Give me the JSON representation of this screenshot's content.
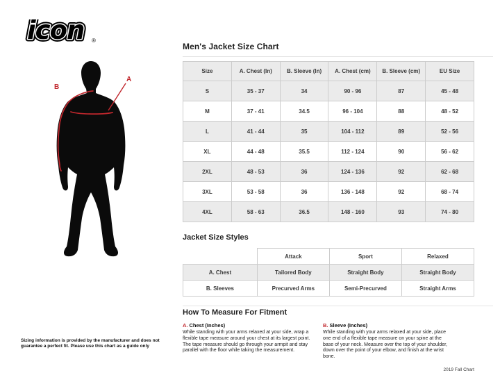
{
  "colors": {
    "accent_red": "#c1272d",
    "table_stripe": "#ebebeb",
    "table_border": "#cccccc"
  },
  "logo": {
    "text": "icon",
    "registered": "®"
  },
  "figure": {
    "label_a": "A",
    "label_b": "B"
  },
  "size_chart": {
    "title": "Men's Jacket Size Chart",
    "columns": [
      "Size",
      "A. Chest (In)",
      "B. Sleeve (In)",
      "A. Chest (cm)",
      "B. Sleeve (cm)",
      "EU Size"
    ],
    "rows": [
      [
        "S",
        "35 - 37",
        "34",
        "90 - 96",
        "87",
        "45 - 48"
      ],
      [
        "M",
        "37 - 41",
        "34.5",
        "96 - 104",
        "88",
        "48 - 52"
      ],
      [
        "L",
        "41 - 44",
        "35",
        "104 - 112",
        "89",
        "52 - 56"
      ],
      [
        "XL",
        "44 - 48",
        "35.5",
        "112 - 124",
        "90",
        "56 - 62"
      ],
      [
        "2XL",
        "48 - 53",
        "36",
        "124 - 136",
        "92",
        "62 - 68"
      ],
      [
        "3XL",
        "53 - 58",
        "36",
        "136 - 148",
        "92",
        "68 - 74"
      ],
      [
        "4XL",
        "58 - 63",
        "36.5",
        "148 - 160",
        "93",
        "74 - 80"
      ]
    ]
  },
  "styles_chart": {
    "title": "Jacket Size Styles",
    "columns": [
      "",
      "Attack",
      "Sport",
      "Relaxed"
    ],
    "rows": [
      [
        "A. Chest",
        "Tailored Body",
        "Straight Body",
        "Straight Body"
      ],
      [
        "B. Sleeves",
        "Precurved Arms",
        "Semi-Precurved",
        "Straight Arms"
      ]
    ]
  },
  "measure": {
    "title": "How To Measure For Fitment",
    "chest": {
      "label_prefix": "A.",
      "heading": "Chest (Inches)",
      "body": "While standing with your arms relaxed at your side, wrap a flexible tape measure around your chest at its largest point. The tape measure should go through your armpit and stay parallel with the floor while taking the measurement."
    },
    "sleeve": {
      "label_prefix": "B.",
      "heading": "Sleeve (Inches)",
      "body": "While standing with your arms relaxed at your side, place one end of a flexible tape measure on your spine at the base of your neck. Measure over the top of your shoulder, down over the point of your elbow, and finish at the wrist bone."
    }
  },
  "footer": {
    "disclaimer": "Sizing information is provided by the manufacturer and does not guarantee a perfect fit. Please use this chart as a guide only",
    "chart_version": "2019 Fall Chart"
  }
}
